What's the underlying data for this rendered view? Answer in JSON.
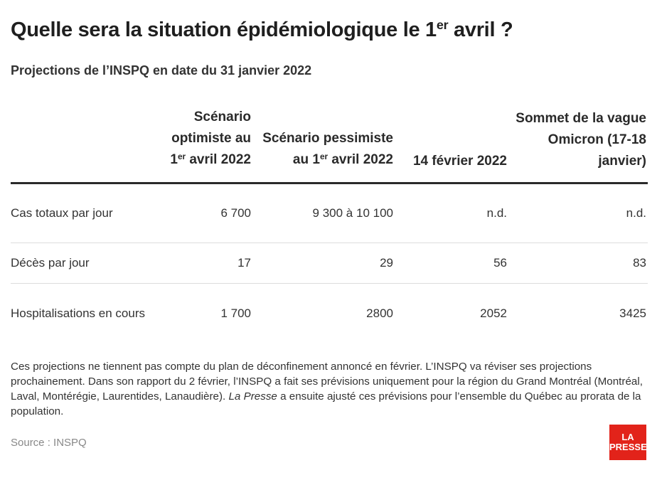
{
  "title": {
    "before": "Quelle sera la situation épidémiologique le 1",
    "sup": "er",
    "after": " avril ?"
  },
  "subtitle": "Projections de l’INSPQ en date du 31 janvier 2022",
  "table": {
    "headers": {
      "col1": {
        "before": "Scénario optimiste au 1",
        "sup": "er",
        "after": " avril 2022"
      },
      "col2": {
        "before": "Scénario pessimiste au 1",
        "sup": "er",
        "after": " avril 2022"
      },
      "col3": "14 février 2022",
      "col4": "Sommet de la vague Omicron (17-18 janvier)"
    },
    "rows": [
      {
        "label": "Cas totaux par jour",
        "values": [
          "6 700",
          "9 300 à 10 100",
          "n.d.",
          "n.d."
        ]
      },
      {
        "label": "Décès par jour",
        "values": [
          "17",
          "29",
          "56",
          "83"
        ]
      },
      {
        "label": "Hospitalisations en cours",
        "values": [
          "1 700",
          "2800",
          "2052",
          "3425"
        ]
      }
    ]
  },
  "note": {
    "part1": "Ces projections ne tiennent pas compte du plan de déconfinement annoncé en février. L’INSPQ va réviser ses projections prochainement. Dans son rapport du 2 février, l’INSPQ a fait ses prévisions uniquement pour la région du Grand Montréal (Montréal, Laval, Montérégie, Laurentides, Lanaudière). ",
    "italic": "La Presse",
    "part2": " a ensuite ajusté ces prévisions pour l’ensemble du Québec au prorata de la population."
  },
  "source": "Source : INSPQ",
  "logo": {
    "line1": "LA",
    "line2": "PRESSE",
    "color": "#e2231a"
  }
}
